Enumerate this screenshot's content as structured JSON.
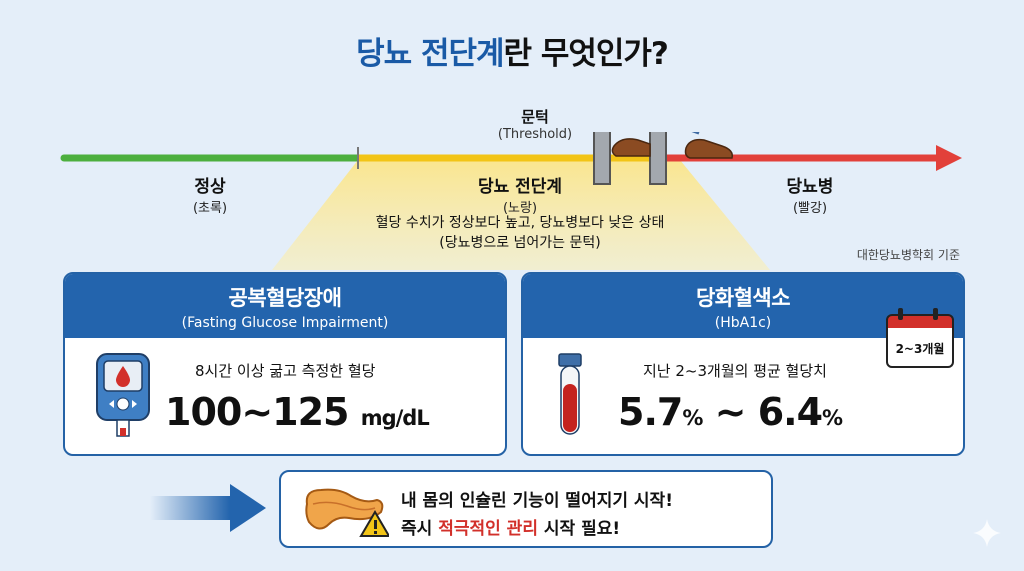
{
  "title": {
    "part1": "당뇨 전단계",
    "part2": "란 무엇인가?"
  },
  "colors": {
    "normal": "#4caf3e",
    "prediabetes": "#f2c417",
    "diabetes": "#e2403a",
    "accent": "#2364ad",
    "alert_red": "#d2302a"
  },
  "threshold": {
    "label": "문턱",
    "english": "(Threshold)"
  },
  "zones": {
    "normal": {
      "name": "정상",
      "color_word": "(초록)"
    },
    "prediabetes": {
      "name": "당뇨 전단계",
      "color_word": "(노랑)",
      "desc1": "혈당 수치가 정상보다 높고, 당뇨병보다 낮은 상태",
      "desc2": "(당뇨병으로 넘어가는 문턱)"
    },
    "diabetes": {
      "name": "당뇨병",
      "color_word": "(빨강)"
    }
  },
  "source": "대한당뇨병학회 기준",
  "cards": {
    "left": {
      "title": "공복혈당장애",
      "subtitle": "(Fasting Glucose Impairment)",
      "desc": "8시간 이상 굶고 측정한 혈당",
      "value": "100~125",
      "unit": "mg/dL",
      "icon": "glucose-meter-icon"
    },
    "right": {
      "title": "당화혈색소",
      "subtitle": "(HbA1c)",
      "desc": "지난 2~3개월의 평균 혈당치",
      "value_a": "5.7",
      "value_sep": " ~ ",
      "value_b": "6.4",
      "pct": "%",
      "calendar": "2~3개월",
      "icon": "blood-tube-icon"
    }
  },
  "alert": {
    "line1": "내 몸의 인슐린 기능이 떨어지기 시작!",
    "line2_a": "즉시 ",
    "line2_b": "적극적인 관리",
    "line2_c": " 시작 필요!"
  }
}
